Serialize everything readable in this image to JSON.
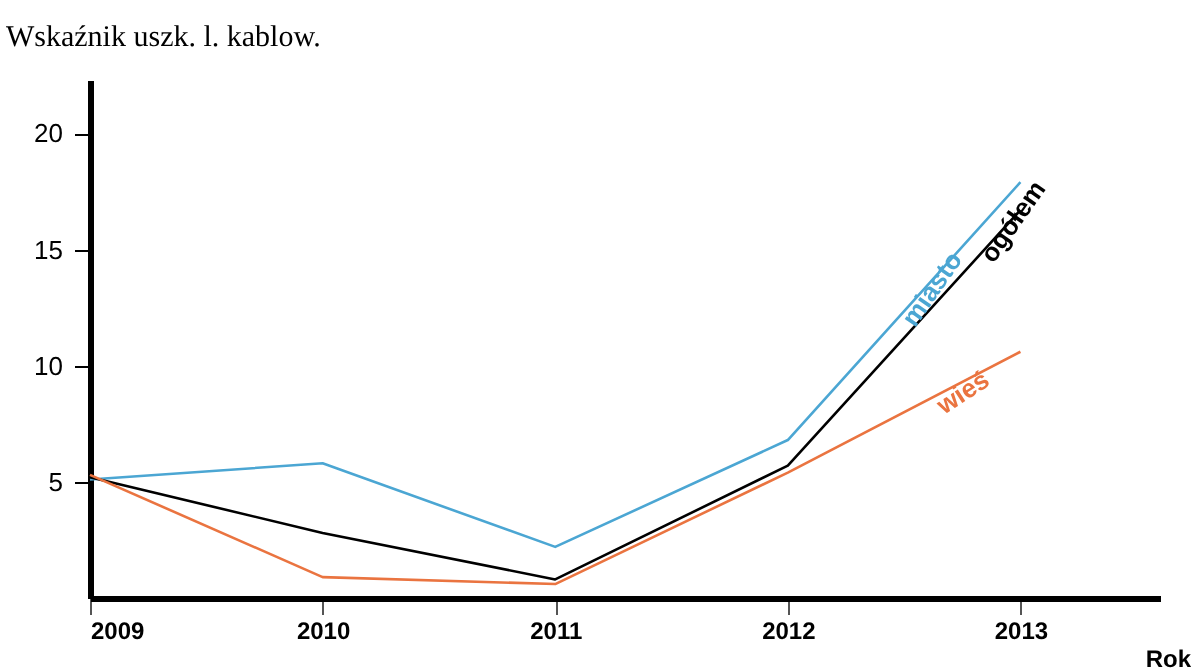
{
  "chart_data": {
    "type": "line",
    "title": "Wskaźnik uszk. l. kablow.",
    "xlabel": "Rok",
    "x": [
      2009,
      2010,
      2011,
      2012,
      2013
    ],
    "series": [
      {
        "name": "miasto",
        "color": "#4ba6d3",
        "values": [
          5.1,
          5.8,
          2.2,
          6.8,
          17.9
        ]
      },
      {
        "name": "ogółem",
        "color": "#000000",
        "values": [
          5.2,
          2.8,
          0.8,
          5.7,
          16.7
        ]
      },
      {
        "name": "wieś",
        "color": "#ea7440",
        "values": [
          5.3,
          0.9,
          0.6,
          5.4,
          10.6
        ]
      }
    ],
    "xlim": [
      2009,
      2013.6
    ],
    "ylim": [
      0,
      22.3
    ],
    "xticks": [
      2009,
      2010,
      2011,
      2012,
      2013
    ],
    "yticks": [
      5,
      10,
      15,
      20
    ],
    "grid": false,
    "legend": false,
    "marker": "none",
    "line_style": "solid"
  }
}
